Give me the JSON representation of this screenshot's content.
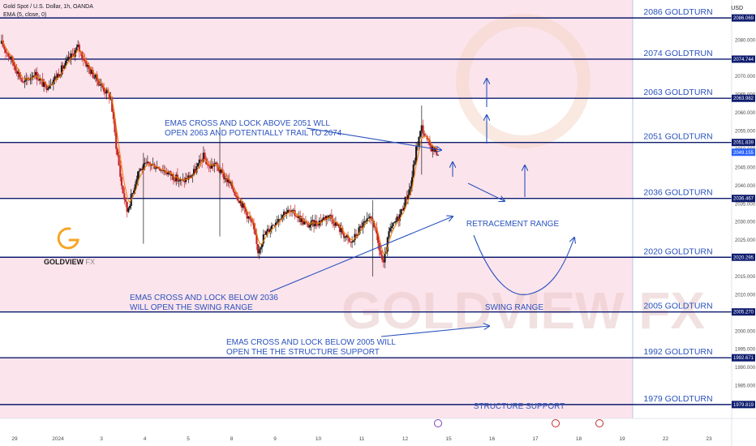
{
  "header": {
    "symbol": "Gold Spot / U.S. Dollar, 1h, OANDA",
    "indicator": "EMA (5, close, 0)",
    "currency": "USD"
  },
  "logo": {
    "text_main": "GOLDVIEW",
    "text_accent": "FX"
  },
  "watermark": "GOLDVIEW FX",
  "colors": {
    "zone_fill": "#fce4ec",
    "level_line": "#0d1b6e",
    "level_label_bg": "#0d1b6e",
    "current_label_bg": "#2962ff",
    "annotation": "#2a52be",
    "candle_up": "#1a1a1a",
    "candle_down": "#c62828",
    "ema": "#f57c00",
    "logo_orange": "#f5a623"
  },
  "chart_data": {
    "type": "candlestick",
    "ylim": [
      1976,
      2091
    ],
    "yticks": [
      1980,
      1985,
      1990,
      1995,
      2000,
      2005,
      2010,
      2015,
      2020,
      2025,
      2030,
      2035,
      2040,
      2045,
      2050,
      2055,
      2060,
      2065,
      2070,
      2075,
      2080
    ],
    "xticks": [
      "29",
      "2024",
      "3",
      "4",
      "5",
      "8",
      "9",
      "10",
      "11",
      "12",
      "15",
      "16",
      "17",
      "18",
      "19",
      "22",
      "23"
    ],
    "current_price": 2049.155,
    "levels": [
      {
        "price": 2086.069,
        "label": "2086 GOLDTURN"
      },
      {
        "price": 2074.744,
        "label": "2074 GOLDTRUN"
      },
      {
        "price": 2063.982,
        "label": "2063 GOLDTURN"
      },
      {
        "price": 2051.839,
        "label": "2051 GOLDTURN"
      },
      {
        "price": 2036.467,
        "label": "2036 GOLDTURN"
      },
      {
        "price": 2020.295,
        "label": "2020 GOLDTURN"
      },
      {
        "price": 2005.27,
        "label": "2005 GOLDTURN"
      },
      {
        "price": 1992.671,
        "label": "1992 GOLDTURN"
      },
      {
        "price": 1979.819,
        "label": "1979 GOLDTURN"
      }
    ],
    "zones": [
      [
        2063.982,
        2091
      ],
      [
        2036.467,
        2051.839
      ],
      [
        2005.27,
        2020.295
      ],
      [
        1976,
        1992.671
      ]
    ],
    "annotations": [
      {
        "lines": [
          "EMA5 CROSS AND LOCK ABOVE 2051 WLL",
          "OPEN 2063 AND POTENTIALLY TRAIL TO 2074"
        ]
      },
      {
        "lines": [
          "EMA5 CROSS AND LOCK BELOW 2036",
          "WILL OPEN THE SWING RANGE"
        ]
      },
      {
        "lines": [
          "EMA5 CROSS AND LOCK BELOW 2005 WILL",
          "OPEN THE THE STRUCTURE SUPPORT"
        ]
      }
    ],
    "range_labels": [
      "RETRACEMENT RANGE",
      "SWING RANGE",
      "STRUCTURE SUPPORT"
    ],
    "price_path": [
      [
        0,
        2079
      ],
      [
        4,
        2074
      ],
      [
        8,
        2068
      ],
      [
        12,
        2071
      ],
      [
        16,
        2067
      ],
      [
        20,
        2070
      ],
      [
        24,
        2074
      ],
      [
        28,
        2078
      ],
      [
        32,
        2072
      ],
      [
        36,
        2068
      ],
      [
        40,
        2064
      ],
      [
        42,
        2051
      ],
      [
        44,
        2040
      ],
      [
        46,
        2033
      ],
      [
        48,
        2038
      ],
      [
        50,
        2044
      ],
      [
        54,
        2046
      ],
      [
        58,
        2045
      ],
      [
        62,
        2043
      ],
      [
        66,
        2041
      ],
      [
        70,
        2043
      ],
      [
        74,
        2048
      ],
      [
        76,
        2045
      ],
      [
        78,
        2046
      ],
      [
        80,
        2044
      ],
      [
        84,
        2040
      ],
      [
        88,
        2035
      ],
      [
        92,
        2029
      ],
      [
        94,
        2022
      ],
      [
        96,
        2026
      ],
      [
        100,
        2030
      ],
      [
        104,
        2033
      ],
      [
        108,
        2032
      ],
      [
        112,
        2029
      ],
      [
        116,
        2030
      ],
      [
        120,
        2032
      ],
      [
        124,
        2028
      ],
      [
        128,
        2024
      ],
      [
        132,
        2029
      ],
      [
        136,
        2031
      ],
      [
        138,
        2024
      ],
      [
        140,
        2018
      ],
      [
        142,
        2027
      ],
      [
        146,
        2032
      ],
      [
        150,
        2040
      ],
      [
        152,
        2050
      ],
      [
        154,
        2056
      ],
      [
        156,
        2052
      ],
      [
        158,
        2050
      ],
      [
        160,
        2049
      ]
    ]
  }
}
